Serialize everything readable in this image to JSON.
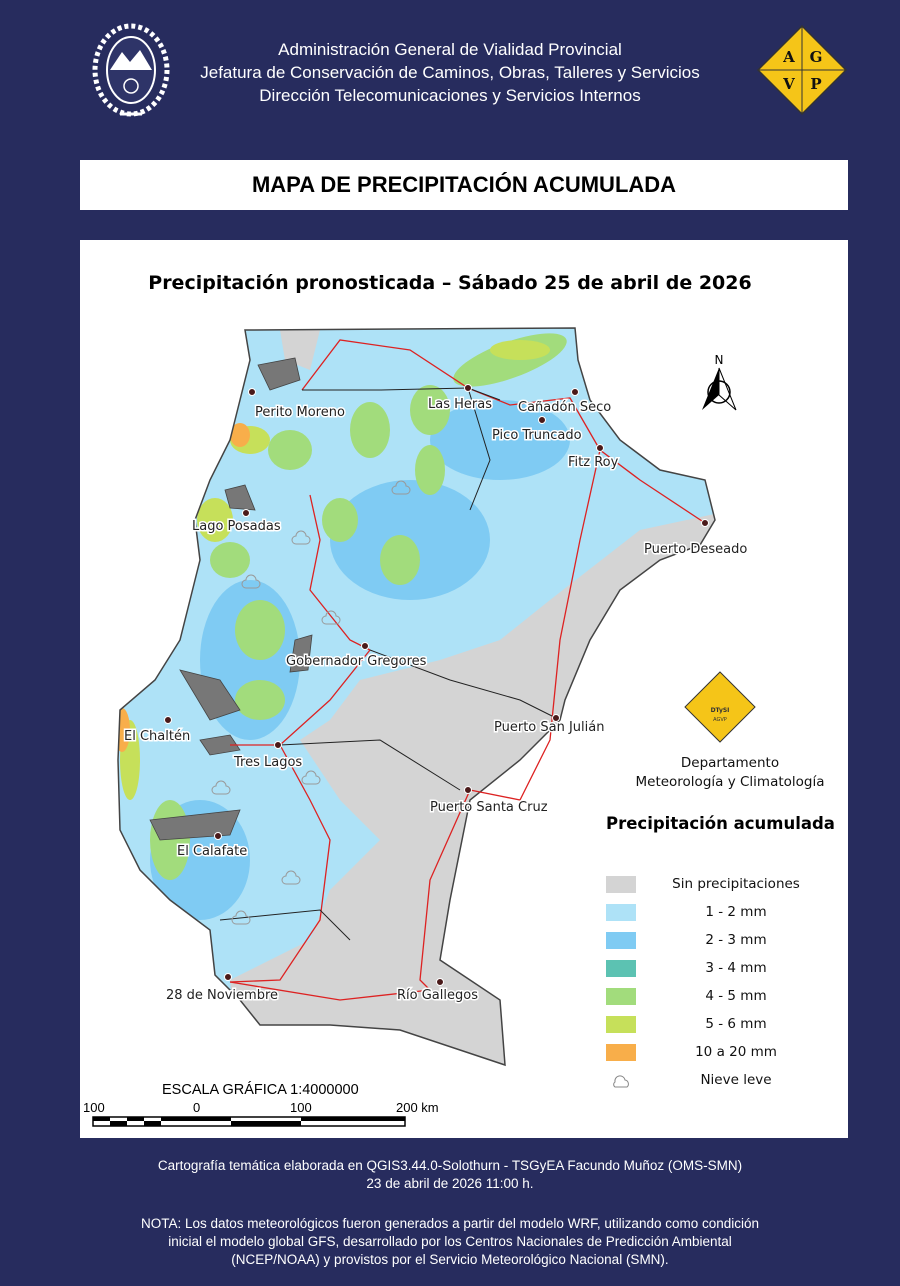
{
  "header": {
    "lines": [
      "Administración General de Vialidad Provincial",
      "Jefatura de Conservación de Caminos, Obras, Talleres y Servicios",
      "Dirección Telecomunicaciones y Servicios Internos"
    ],
    "logo_left": "provincial-seal",
    "logo_right": {
      "letters": [
        "A",
        "G",
        "V",
        "P"
      ],
      "color": "#f5c518"
    }
  },
  "title": "MAPA DE PRECIPITACIÓN ACUMULADA",
  "map": {
    "subtitle": "Precipitación pronosticada – Sábado 25 de abril de 2026",
    "north_label": "N",
    "cities": [
      "Perito Moreno",
      "Las Heras",
      "Cañadón Seco",
      "Pico Truncado",
      "Fitz Roy",
      "Puerto Deseado",
      "Lago Posadas",
      "Gobernador Gregores",
      "Puerto San Julián",
      "El Chaltén",
      "Tres Lagos",
      "Puerto Santa Cruz",
      "El Calafate",
      "28 de Noviembre",
      "Río Gallegos"
    ],
    "department_logo_text": [
      "DTySI",
      "AGVP"
    ],
    "department": [
      "Departamento",
      "Meteorología y Climatología"
    ]
  },
  "legend": {
    "title": "Precipitación acumulada",
    "items": [
      {
        "label": "Sin precipitaciones",
        "color": "#d4d4d4"
      },
      {
        "label": "1 - 2 mm",
        "color": "#aee2f7"
      },
      {
        "label": "2 - 3 mm",
        "color": "#7fcbf3"
      },
      {
        "label": "3 - 4 mm",
        "color": "#5cc2b2"
      },
      {
        "label": "4 - 5 mm",
        "color": "#a2dc7c"
      },
      {
        "label": "5 - 6 mm",
        "color": "#c6e05a"
      },
      {
        "label": "10 a 20 mm",
        "color": "#f8ae4a"
      },
      {
        "label": "Nieve leve",
        "icon": "snow-cloud-icon"
      }
    ]
  },
  "scale": {
    "title": "ESCALA GRÁFICA 1:4000000",
    "labels": [
      "100",
      "0",
      "100",
      "200 km"
    ]
  },
  "footer": {
    "credit": "Cartografía temática elaborada en QGIS3.44.0-Solothurn - TSGyEA Facundo Muñoz (OMS-SMN)",
    "date": "23 de abril de 2026 11:00 h.",
    "note": [
      "NOTA: Los datos meteorológicos fueron generados a partir del modelo WRF, utilizando como condición",
      "inicial el modelo global GFS, desarrollado por los Centros Nacionales de Predicción Ambiental",
      "(NCEP/NOAA) y provistos por el Servicio Meteorológico Nacional (SMN)."
    ]
  }
}
